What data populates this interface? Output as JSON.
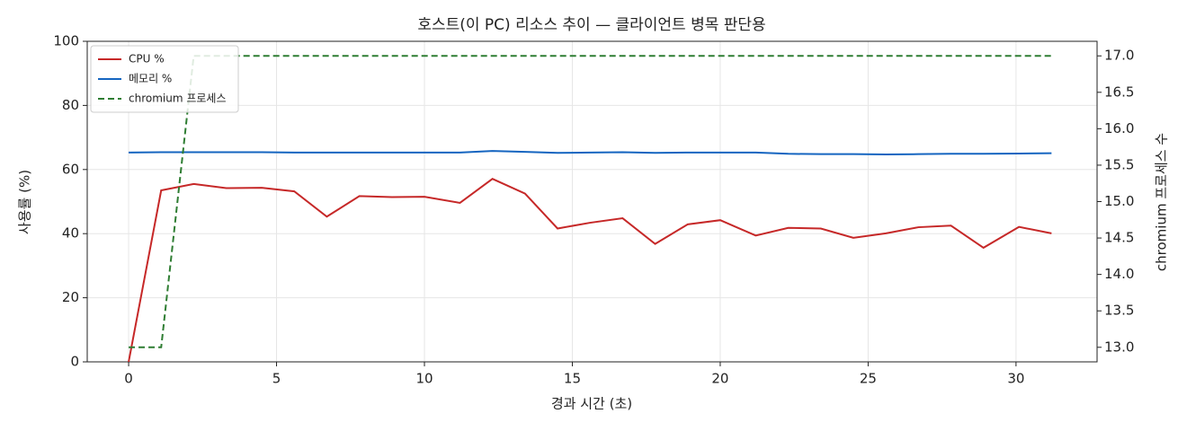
{
  "chart_data": {
    "type": "line",
    "title": "호스트(이 PC) 리소스 추이 — 클라이언트 병목 판단용",
    "xlabel": "경과 시간 (초)",
    "ylabel": "사용률 (%)",
    "y2label": "chromium 프로세스 수",
    "x": [
      0,
      1.1,
      2.2,
      3.3,
      4.5,
      5.6,
      6.7,
      7.8,
      8.9,
      10.0,
      11.2,
      12.3,
      13.4,
      14.5,
      15.6,
      16.7,
      17.8,
      18.9,
      20.0,
      21.2,
      22.3,
      23.4,
      24.5,
      25.6,
      26.7,
      27.8,
      28.9,
      30.1,
      31.2
    ],
    "series": [
      {
        "name": "CPU %",
        "color": "#c62828",
        "linestyle": "solid",
        "values": [
          0,
          53.5,
          55.5,
          54.2,
          54.3,
          53.2,
          45.3,
          51.7,
          51.4,
          51.5,
          49.6,
          57.1,
          52.5,
          41.6,
          43.4,
          44.8,
          36.8,
          42.9,
          44.2,
          39.4,
          41.8,
          41.6,
          38.7,
          40.1,
          42.0,
          42.5,
          35.6,
          42.1,
          40.1
        ]
      },
      {
        "name": "메모리 %",
        "color": "#1565c0",
        "linestyle": "solid",
        "values": [
          65.3,
          65.4,
          65.4,
          65.4,
          65.4,
          65.3,
          65.3,
          65.3,
          65.3,
          65.3,
          65.3,
          65.8,
          65.5,
          65.2,
          65.3,
          65.4,
          65.2,
          65.3,
          65.3,
          65.3,
          64.9,
          64.8,
          64.8,
          64.7,
          64.8,
          64.9,
          64.9,
          65.0,
          65.1
        ]
      },
      {
        "name": "chromium 프로세스",
        "color": "#2e7d32",
        "linestyle": "dashed",
        "axis": "y2",
        "values": [
          13,
          13,
          17,
          17,
          17,
          17,
          17,
          17,
          17,
          17,
          17,
          17,
          17,
          17,
          17,
          17,
          17,
          17,
          17,
          17,
          17,
          17,
          17,
          17,
          17,
          17,
          17,
          17,
          17
        ]
      }
    ],
    "xlim": [
      -1.4,
      32.74
    ],
    "xticks": [
      0,
      5,
      10,
      15,
      20,
      25,
      30
    ],
    "ylim": [
      0,
      100
    ],
    "yticks": [
      0,
      20,
      40,
      60,
      80,
      100
    ],
    "y2lim": [
      12.8,
      17.2
    ],
    "y2ticks": [
      {
        "value": 13,
        "label": "13.0"
      },
      13.5,
      {
        "value": 14,
        "label": "14.0"
      },
      14.5,
      {
        "value": 15,
        "label": "15.0"
      },
      15.5,
      {
        "value": 16,
        "label": "16.0"
      },
      16.5,
      {
        "value": 17,
        "label": "17.0"
      }
    ],
    "grid": true,
    "legend": "upper left"
  }
}
